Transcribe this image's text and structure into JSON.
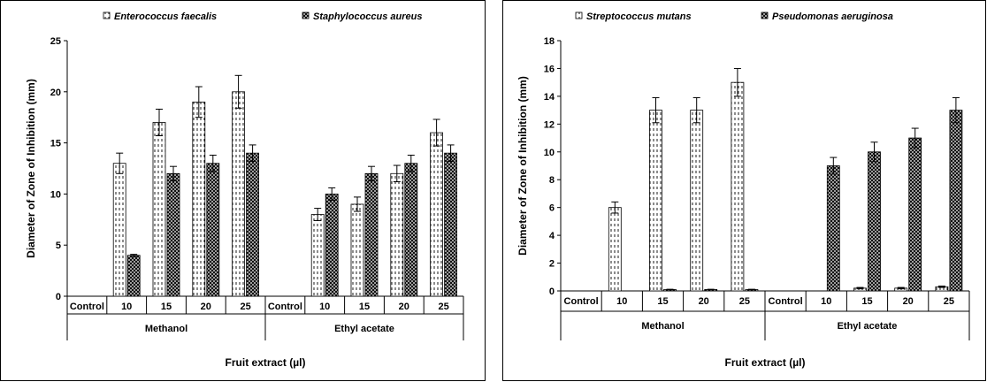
{
  "chart_data": [
    {
      "type": "bar",
      "title": "",
      "ylabel": "Diameter of Zone of Inhibition (mm)",
      "xlabel": "Fruit extract (µl)",
      "ylim": [
        0,
        25
      ],
      "yticks": [
        0,
        5,
        10,
        15,
        20,
        25
      ],
      "legend_position": "top",
      "categories": [
        "Control",
        "10",
        "15",
        "20",
        "25",
        "Control",
        "10",
        "15",
        "20",
        "25"
      ],
      "groups": [
        {
          "label": "Methanol",
          "categories": 5
        },
        {
          "label": "Ethyl acetate",
          "categories": 5
        }
      ],
      "series": [
        {
          "name": "Enterococcus faecalis",
          "pattern": "dashed",
          "values": [
            0,
            13,
            17,
            19,
            20,
            0,
            8,
            9,
            12,
            16
          ],
          "errors": [
            0,
            1,
            1.3,
            1.5,
            1.6,
            0,
            0.6,
            0.7,
            0.8,
            1.3
          ]
        },
        {
          "name": "Staphylococcus aureus",
          "pattern": "dotted",
          "values": [
            0,
            4,
            12,
            13,
            14,
            0,
            10,
            12,
            13,
            14
          ],
          "errors": [
            0,
            0.1,
            0.7,
            0.8,
            0.8,
            0,
            0.6,
            0.7,
            0.8,
            0.8
          ]
        }
      ]
    },
    {
      "type": "bar",
      "title": "",
      "ylabel": "Diameter of Zone of Inhibition (mm)",
      "xlabel": "Fruit extract (µl)",
      "ylim": [
        0,
        18
      ],
      "yticks": [
        0,
        2,
        4,
        6,
        8,
        10,
        12,
        14,
        16,
        18
      ],
      "legend_position": "top",
      "categories": [
        "Control",
        "10",
        "15",
        "20",
        "25",
        "Control",
        "10",
        "15",
        "20",
        "25"
      ],
      "groups": [
        {
          "label": "Methanol",
          "categories": 5
        },
        {
          "label": "Ethyl acetate",
          "categories": 5
        }
      ],
      "series": [
        {
          "name": "Streptococcus mutans",
          "pattern": "dashed",
          "values": [
            0,
            6,
            13,
            13,
            15,
            0,
            0,
            0.2,
            0.2,
            0.3
          ],
          "errors": [
            0,
            0.4,
            0.9,
            0.9,
            1.0,
            0,
            0,
            0.05,
            0.05,
            0.05
          ]
        },
        {
          "name": "Pseudomonas aeruginosa",
          "pattern": "dotted",
          "values": [
            0,
            0,
            0.1,
            0.1,
            0.1,
            0,
            9,
            10,
            11,
            13
          ],
          "errors": [
            0,
            0,
            0.02,
            0.02,
            0.02,
            0,
            0.6,
            0.7,
            0.7,
            0.9
          ]
        }
      ]
    }
  ]
}
